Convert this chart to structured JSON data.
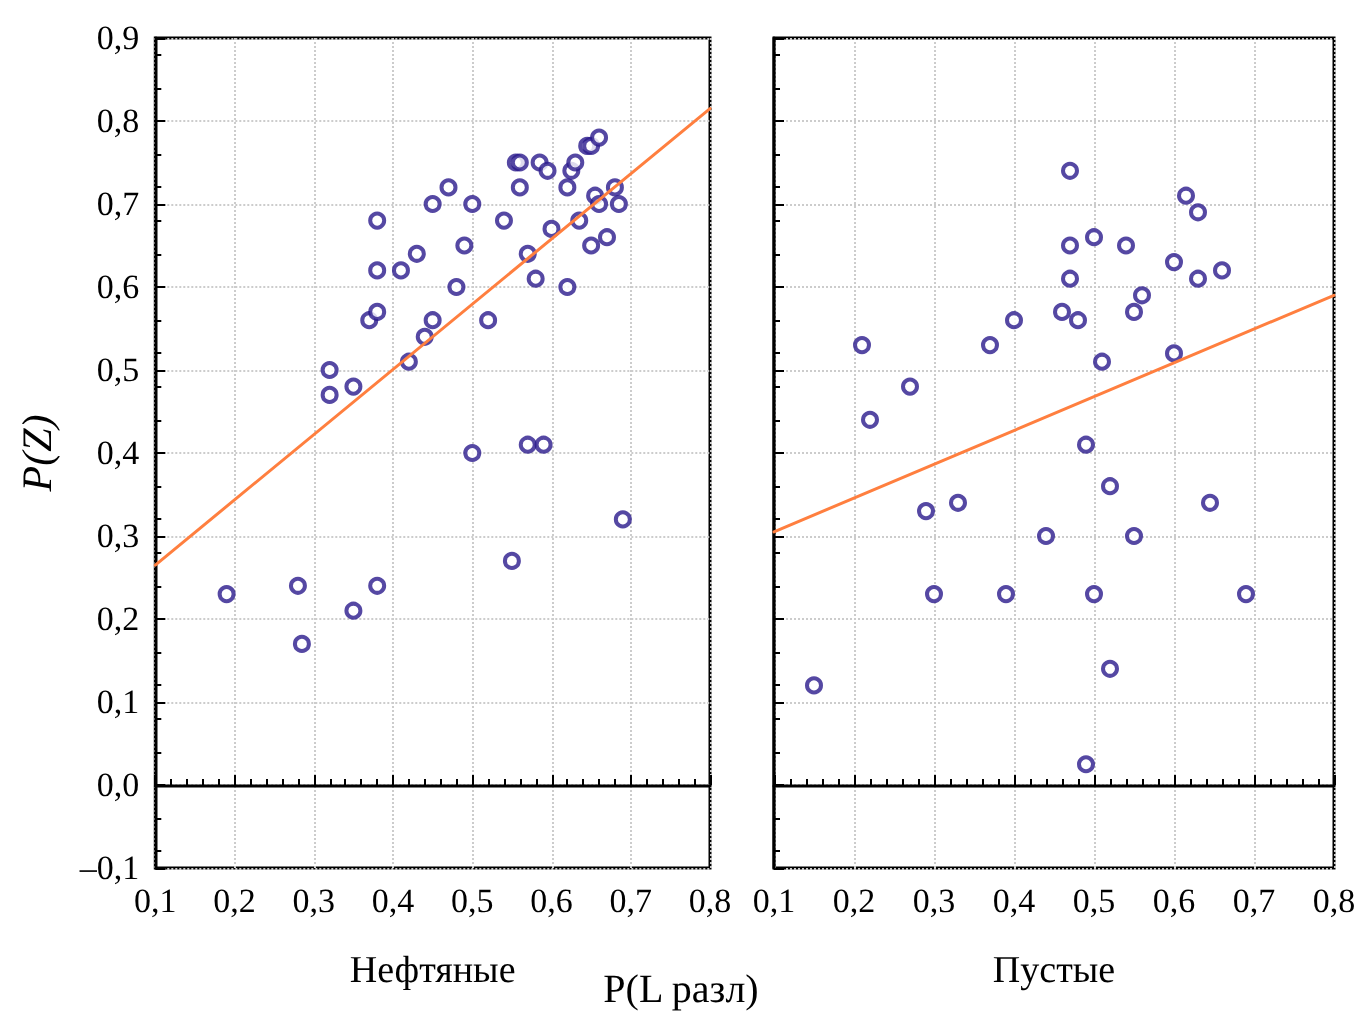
{
  "chart_data": [
    {
      "type": "scatter",
      "xlabel": "Нефтяные",
      "ylabel": "P(Z)",
      "annotations": [
        "P(L разл)"
      ],
      "xlim": [
        0.1,
        0.8
      ],
      "ylim": [
        -0.1,
        0.9
      ],
      "xticks": [
        {
          "value": 0.1,
          "label": "0,1"
        },
        {
          "value": 0.2,
          "label": "0,2"
        },
        {
          "value": 0.3,
          "label": "0,3"
        },
        {
          "value": 0.4,
          "label": "0,4"
        },
        {
          "value": 0.5,
          "label": "0,5"
        },
        {
          "value": 0.6,
          "label": "0,6"
        },
        {
          "value": 0.7,
          "label": "0,7"
        },
        {
          "value": 0.8,
          "label": "0,8"
        }
      ],
      "yticks": [
        {
          "value": -0.1,
          "label": "–0,1"
        },
        {
          "value": 0,
          "label": "0,0"
        },
        {
          "value": 0.1,
          "label": "0,1"
        },
        {
          "value": 0.2,
          "label": "0,2"
        },
        {
          "value": 0.3,
          "label": "0,3"
        },
        {
          "value": 0.4,
          "label": "0,4"
        },
        {
          "value": 0.5,
          "label": "0,5"
        },
        {
          "value": 0.6,
          "label": "0,6"
        },
        {
          "value": 0.7,
          "label": "0,7"
        },
        {
          "value": 0.8,
          "label": "0,8"
        },
        {
          "value": 0.9,
          "label": "0,9"
        }
      ],
      "grid": true,
      "marker": "circle",
      "series": [
        {
          "color": "#2a1a8c",
          "x": [
            0.19,
            0.28,
            0.285,
            0.35,
            0.38,
            0.32,
            0.32,
            0.35,
            0.37,
            0.38,
            0.38,
            0.38,
            0.41,
            0.42,
            0.43,
            0.44,
            0.45,
            0.45,
            0.47,
            0.48,
            0.49,
            0.5,
            0.5,
            0.52,
            0.54,
            0.55,
            0.555,
            0.56,
            0.56,
            0.57,
            0.57,
            0.58,
            0.59,
            0.585,
            0.595,
            0.6,
            0.62,
            0.62,
            0.625,
            0.63,
            0.635,
            0.645,
            0.65,
            0.65,
            0.655,
            0.66,
            0.66,
            0.67,
            0.68,
            0.685,
            0.69
          ],
          "values": [
            0.23,
            0.24,
            0.17,
            0.21,
            0.24,
            0.5,
            0.47,
            0.48,
            0.56,
            0.57,
            0.62,
            0.68,
            0.62,
            0.51,
            0.64,
            0.54,
            0.56,
            0.7,
            0.72,
            0.6,
            0.65,
            0.4,
            0.7,
            0.56,
            0.68,
            0.27,
            0.75,
            0.75,
            0.72,
            0.41,
            0.64,
            0.61,
            0.41,
            0.75,
            0.74,
            0.67,
            0.6,
            0.72,
            0.74,
            0.75,
            0.68,
            0.77,
            0.65,
            0.77,
            0.71,
            0.7,
            0.78,
            0.66,
            0.72,
            0.7,
            0.32
          ]
        },
        {
          "type": "line",
          "color": "#ff7f3f",
          "marker": "none",
          "line_style": "solid",
          "x": [
            0.1,
            0.8
          ],
          "values": [
            0.265,
            0.815
          ]
        }
      ]
    },
    {
      "type": "scatter",
      "xlabel": "Пустые",
      "xlim": [
        0.1,
        0.8
      ],
      "ylim": [
        -0.1,
        0.9
      ],
      "tick_labels": "x",
      "xticks": [
        {
          "value": 0.1,
          "label": "0,1"
        },
        {
          "value": 0.2,
          "label": "0,2"
        },
        {
          "value": 0.3,
          "label": "0,3"
        },
        {
          "value": 0.4,
          "label": "0,4"
        },
        {
          "value": 0.5,
          "label": "0,5"
        },
        {
          "value": 0.6,
          "label": "0,6"
        },
        {
          "value": 0.7,
          "label": "0,7"
        },
        {
          "value": 0.8,
          "label": "0,8"
        }
      ],
      "yticks": [
        {
          "value": -0.1,
          "label": null
        },
        {
          "value": 0,
          "label": null
        },
        {
          "value": 0.1,
          "label": null
        },
        {
          "value": 0.2,
          "label": null
        },
        {
          "value": 0.3,
          "label": null
        },
        {
          "value": 0.4,
          "label": null
        },
        {
          "value": 0.5,
          "label": null
        },
        {
          "value": 0.6,
          "label": null
        },
        {
          "value": 0.7,
          "label": null
        },
        {
          "value": 0.8,
          "label": null
        },
        {
          "value": 0.9,
          "label": null
        }
      ],
      "grid": true,
      "marker": "circle",
      "series": [
        {
          "color": "#2a1a8c",
          "x": [
            0.15,
            0.21,
            0.22,
            0.27,
            0.29,
            0.3,
            0.33,
            0.37,
            0.39,
            0.4,
            0.44,
            0.46,
            0.47,
            0.47,
            0.47,
            0.48,
            0.49,
            0.49,
            0.5,
            0.5,
            0.51,
            0.52,
            0.52,
            0.54,
            0.55,
            0.55,
            0.56,
            0.6,
            0.6,
            0.615,
            0.63,
            0.63,
            0.645,
            0.66,
            0.69
          ],
          "values": [
            0.12,
            0.53,
            0.44,
            0.48,
            0.33,
            0.23,
            0.34,
            0.53,
            0.23,
            0.56,
            0.3,
            0.57,
            0.74,
            0.65,
            0.61,
            0.56,
            0.025,
            0.41,
            0.23,
            0.66,
            0.51,
            0.36,
            0.14,
            0.65,
            0.3,
            0.57,
            0.59,
            0.63,
            0.52,
            0.71,
            0.69,
            0.61,
            0.34,
            0.62,
            0.23
          ]
        },
        {
          "type": "line",
          "color": "#ff7f3f",
          "marker": "none",
          "line_style": "solid",
          "x": [
            0.1,
            0.8
          ],
          "values": [
            0.305,
            0.59
          ]
        }
      ]
    }
  ]
}
